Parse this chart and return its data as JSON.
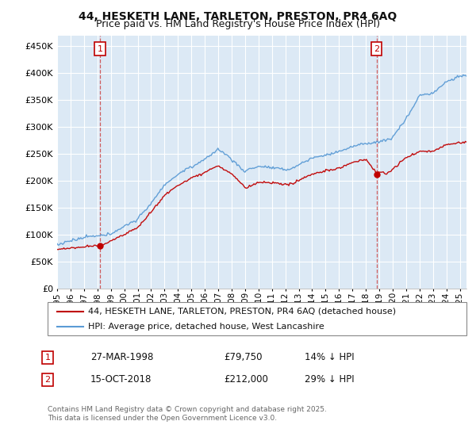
{
  "title": "44, HESKETH LANE, TARLETON, PRESTON, PR4 6AQ",
  "subtitle": "Price paid vs. HM Land Registry's House Price Index (HPI)",
  "ylim": [
    0,
    470000
  ],
  "yticks": [
    0,
    50000,
    100000,
    150000,
    200000,
    250000,
    300000,
    350000,
    400000,
    450000
  ],
  "x_start_year": 1995,
  "x_end_year": 2025,
  "sale1_date": "27-MAR-1998",
  "sale1_price": 79750,
  "sale1_label": "14% ↓ HPI",
  "sale2_date": "15-OCT-2018",
  "sale2_price": 212000,
  "sale2_label": "29% ↓ HPI",
  "hpi_line_color": "#5b9bd5",
  "price_line_color": "#c00000",
  "vline_color": "#cc4444",
  "marker_color": "#c00000",
  "legend_line1": "44, HESKETH LANE, TARLETON, PRESTON, PR4 6AQ (detached house)",
  "legend_line2": "HPI: Average price, detached house, West Lancashire",
  "footer": "Contains HM Land Registry data © Crown copyright and database right 2025.\nThis data is licensed under the Open Government Licence v3.0.",
  "bg_color": "#ffffff",
  "plot_bg_color": "#dce9f5",
  "grid_color": "#ffffff",
  "box_color": "#c00000",
  "title_fontsize": 10,
  "subtitle_fontsize": 9,
  "axis_fontsize": 8,
  "legend_fontsize": 8,
  "annotation_fontsize": 8.5,
  "hpi_base_points": [
    [
      1995.0,
      82000
    ],
    [
      1996.0,
      86000
    ],
    [
      1997.0,
      90000
    ],
    [
      1998.0,
      95000
    ],
    [
      1999.0,
      103000
    ],
    [
      2000.0,
      115000
    ],
    [
      2001.0,
      130000
    ],
    [
      2002.0,
      160000
    ],
    [
      2003.0,
      190000
    ],
    [
      2004.0,
      210000
    ],
    [
      2005.0,
      225000
    ],
    [
      2006.0,
      240000
    ],
    [
      2007.0,
      258000
    ],
    [
      2008.0,
      240000
    ],
    [
      2009.0,
      215000
    ],
    [
      2010.0,
      225000
    ],
    [
      2011.0,
      222000
    ],
    [
      2012.0,
      218000
    ],
    [
      2013.0,
      228000
    ],
    [
      2014.0,
      240000
    ],
    [
      2015.0,
      248000
    ],
    [
      2016.0,
      255000
    ],
    [
      2017.0,
      265000
    ],
    [
      2018.0,
      272000
    ],
    [
      2019.0,
      278000
    ],
    [
      2020.0,
      285000
    ],
    [
      2021.0,
      320000
    ],
    [
      2022.0,
      360000
    ],
    [
      2023.0,
      365000
    ],
    [
      2024.0,
      385000
    ],
    [
      2025.0,
      395000
    ]
  ],
  "price_base_points": [
    [
      1995.0,
      73000
    ],
    [
      1996.0,
      75000
    ],
    [
      1997.0,
      77000
    ],
    [
      1998.25,
      79750
    ],
    [
      1999.0,
      87000
    ],
    [
      2000.0,
      98000
    ],
    [
      2001.0,
      112000
    ],
    [
      2002.0,
      140000
    ],
    [
      2003.0,
      170000
    ],
    [
      2004.0,
      188000
    ],
    [
      2005.0,
      200000
    ],
    [
      2006.0,
      213000
    ],
    [
      2007.0,
      225000
    ],
    [
      2008.0,
      210000
    ],
    [
      2009.0,
      183000
    ],
    [
      2010.0,
      194000
    ],
    [
      2011.0,
      191000
    ],
    [
      2012.0,
      187000
    ],
    [
      2013.0,
      197000
    ],
    [
      2014.0,
      208000
    ],
    [
      2015.0,
      216000
    ],
    [
      2016.0,
      222000
    ],
    [
      2017.0,
      232000
    ],
    [
      2018.0,
      238000
    ],
    [
      2018.79,
      212000
    ],
    [
      2019.0,
      215000
    ],
    [
      2019.5,
      210000
    ],
    [
      2020.0,
      218000
    ],
    [
      2021.0,
      240000
    ],
    [
      2022.0,
      255000
    ],
    [
      2023.0,
      255000
    ],
    [
      2024.0,
      268000
    ],
    [
      2025.0,
      272000
    ]
  ]
}
